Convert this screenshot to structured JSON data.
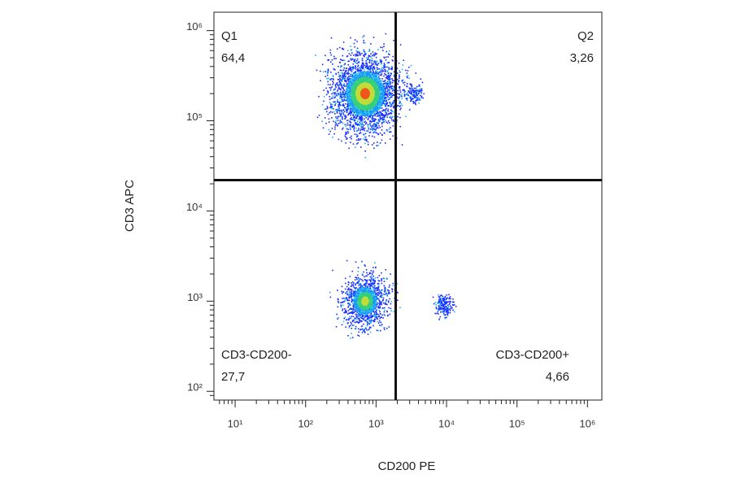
{
  "chart_data": {
    "type": "scatter",
    "x_label": "CD200 PE",
    "y_label": "CD3 APC",
    "xscale": "log",
    "yscale": "log",
    "xlim": [
      5,
      1600000
    ],
    "ylim": [
      80,
      1600000
    ],
    "xticks": [
      {
        "value": 10,
        "label": "10¹"
      },
      {
        "value": 100,
        "label": "10²"
      },
      {
        "value": 1000,
        "label": "10³"
      },
      {
        "value": 10000,
        "label": "10⁴"
      },
      {
        "value": 100000,
        "label": "10⁵"
      },
      {
        "value": 1000000,
        "label": "10⁶"
      }
    ],
    "yticks": [
      {
        "value": 100,
        "label": "10²"
      },
      {
        "value": 1000,
        "label": "10³"
      },
      {
        "value": 10000,
        "label": "10⁴"
      },
      {
        "value": 100000,
        "label": "10⁵"
      },
      {
        "value": 1000000,
        "label": "10⁶"
      }
    ],
    "x_gate": 1900,
    "y_gate": 22000,
    "quadrants": {
      "names": [
        "Q1",
        "Q2",
        "CD3-CD200-",
        "CD3-CD200+"
      ],
      "values": [
        64.4,
        3.26,
        27.7,
        4.66
      ],
      "value_labels": [
        "64,4",
        "3,26",
        "27,7",
        "4,66"
      ],
      "x": [
        700,
        3500,
        700,
        9000
      ],
      "y": [
        200000,
        200000,
        1000,
        900
      ]
    }
  }
}
